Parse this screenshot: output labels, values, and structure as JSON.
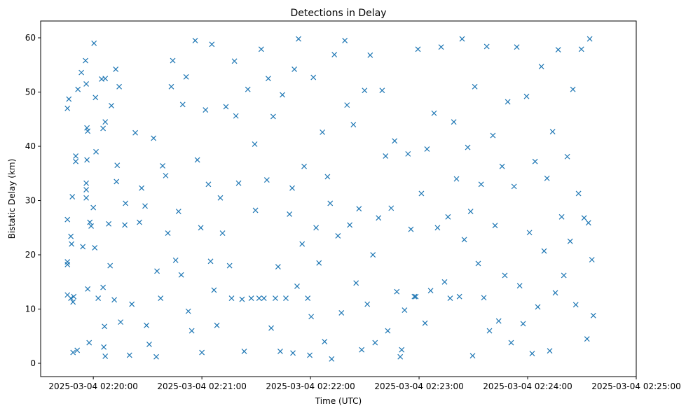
{
  "chart_data": {
    "type": "scatter",
    "title": "Detections in Delay",
    "xlabel": "Time (UTC)",
    "ylabel": "Bistatic Delay (km)",
    "x_unit": "seconds relative to 2025-03-04 02:20:00",
    "xlim": [
      -29.1,
      300
    ],
    "ylim": [
      -2.45,
      63.1
    ],
    "grid": false,
    "marker": "x",
    "color": "#1f77b4",
    "x_ticks": [
      {
        "value": 0,
        "label": "2025-03-04 02:20:00"
      },
      {
        "value": 60,
        "label": "2025-03-04 02:21:00"
      },
      {
        "value": 120,
        "label": "2025-03-04 02:22:00"
      },
      {
        "value": 180,
        "label": "2025-03-04 02:23:00"
      },
      {
        "value": 240,
        "label": "2025-03-04 02:24:00"
      },
      {
        "value": 300,
        "label": "2025-03-04 02:25:00"
      }
    ],
    "y_ticks": [
      {
        "value": 0,
        "label": "0"
      },
      {
        "value": 10,
        "label": "10"
      },
      {
        "value": 20,
        "label": "20"
      },
      {
        "value": 30,
        "label": "30"
      },
      {
        "value": 40,
        "label": "40"
      },
      {
        "value": 50,
        "label": "50"
      },
      {
        "value": 60,
        "label": "60"
      }
    ],
    "points": [
      [
        -14.3,
        47
      ],
      [
        -13.5,
        48.7
      ],
      [
        -14.3,
        26.5
      ],
      [
        -14.3,
        18.7
      ],
      [
        -14.3,
        18.2
      ],
      [
        -14.3,
        12.6
      ],
      [
        -12.4,
        12
      ],
      [
        -12,
        22
      ],
      [
        -12.4,
        23.4
      ],
      [
        -11.6,
        30.7
      ],
      [
        -11.2,
        11.3
      ],
      [
        -10.8,
        12.3
      ],
      [
        -11.2,
        2
      ],
      [
        -8.9,
        2.4
      ],
      [
        -9.7,
        38.2
      ],
      [
        -9.7,
        37.2
      ],
      [
        -8.5,
        50.5
      ],
      [
        -6.6,
        53.6
      ],
      [
        -4.3,
        55.8
      ],
      [
        -3.9,
        51.5
      ],
      [
        -3.5,
        43.4
      ],
      [
        -3.1,
        42.8
      ],
      [
        -3.9,
        33.2
      ],
      [
        -3.9,
        32
      ],
      [
        -3.9,
        30.5
      ],
      [
        -3.5,
        37.5
      ],
      [
        -1.9,
        26
      ],
      [
        -1.2,
        25.3
      ],
      [
        0,
        28.7
      ],
      [
        0.4,
        59
      ],
      [
        1.2,
        49
      ],
      [
        1.5,
        39
      ],
      [
        4.6,
        52.4
      ],
      [
        6.6,
        52.5
      ],
      [
        5.4,
        43.3
      ],
      [
        6.6,
        44.5
      ],
      [
        10,
        47.5
      ],
      [
        12.4,
        54.2
      ],
      [
        14.3,
        51
      ],
      [
        13.2,
        36.5
      ],
      [
        17.8,
        29.5
      ],
      [
        -5.8,
        21.5
      ],
      [
        -3.1,
        13.7
      ],
      [
        -2.3,
        3.8
      ],
      [
        0.8,
        21.3
      ],
      [
        2.7,
        12
      ],
      [
        5.4,
        14
      ],
      [
        5.8,
        3
      ],
      [
        6.2,
        6.8
      ],
      [
        6.6,
        1.3
      ],
      [
        8.5,
        25.7
      ],
      [
        9.3,
        18
      ],
      [
        11.6,
        11.7
      ],
      [
        12.8,
        33.5
      ],
      [
        15.1,
        7.6
      ],
      [
        17.4,
        25.5
      ],
      [
        20,
        1.5
      ],
      [
        21.3,
        10.9
      ],
      [
        23.2,
        42.5
      ],
      [
        25.5,
        26
      ],
      [
        26.7,
        32.3
      ],
      [
        28.6,
        29
      ],
      [
        29.4,
        7
      ],
      [
        30.9,
        3.5
      ],
      [
        33.3,
        41.5
      ],
      [
        34.8,
        1.2
      ],
      [
        35.2,
        17
      ],
      [
        37.2,
        12
      ],
      [
        38.3,
        36.4
      ],
      [
        40,
        34.6
      ],
      [
        41.2,
        24
      ],
      [
        43.1,
        51
      ],
      [
        43.9,
        55.8
      ],
      [
        45.5,
        19
      ],
      [
        47.1,
        28
      ],
      [
        48.6,
        16.3
      ],
      [
        49.4,
        47.7
      ],
      [
        51.3,
        52.8
      ],
      [
        52.5,
        9.6
      ],
      [
        54.4,
        6
      ],
      [
        56.3,
        59.5
      ],
      [
        57.5,
        37.5
      ],
      [
        59.4,
        25
      ],
      [
        60,
        2
      ],
      [
        62,
        46.7
      ],
      [
        63.6,
        33
      ],
      [
        64.8,
        18.8
      ],
      [
        65.5,
        58.8
      ],
      [
        66.7,
        13.5
      ],
      [
        68.3,
        7
      ],
      [
        70.2,
        30.5
      ],
      [
        71.4,
        24
      ],
      [
        73.3,
        47.3
      ],
      [
        75.3,
        18
      ],
      [
        76.4,
        12
      ],
      [
        78,
        55.7
      ],
      [
        78.8,
        45.6
      ],
      [
        80.3,
        33.2
      ],
      [
        82.2,
        11.8
      ],
      [
        83.4,
        2.2
      ],
      [
        85.4,
        50.5
      ],
      [
        87.3,
        12
      ],
      [
        89.2,
        40.4
      ],
      [
        89.6,
        28.2
      ],
      [
        91.6,
        12
      ],
      [
        92.8,
        57.9
      ],
      [
        94.3,
        12
      ],
      [
        95.9,
        33.8
      ],
      [
        96.7,
        52.5
      ],
      [
        98.3,
        6.5
      ],
      [
        99.4,
        45.5
      ],
      [
        100.6,
        12
      ],
      [
        102.1,
        17.8
      ],
      [
        103.3,
        2.2
      ],
      [
        104.5,
        49.5
      ],
      [
        106.4,
        12
      ],
      [
        108.4,
        27.5
      ],
      [
        109.9,
        32.3
      ],
      [
        110.3,
        1.9
      ],
      [
        111.1,
        54.2
      ],
      [
        112.6,
        14.2
      ],
      [
        113.4,
        59.8
      ],
      [
        115.4,
        22
      ],
      [
        116.5,
        36.3
      ],
      [
        118.5,
        12
      ],
      [
        119.6,
        1.5
      ],
      [
        120.4,
        8.6
      ],
      [
        121.6,
        52.7
      ],
      [
        123.1,
        25
      ],
      [
        124.7,
        18.5
      ],
      [
        126.6,
        42.6
      ],
      [
        127.8,
        4
      ],
      [
        129.4,
        34.4
      ],
      [
        130.9,
        29.5
      ],
      [
        131.7,
        0.8
      ],
      [
        133.2,
        56.9
      ],
      [
        135.2,
        23.5
      ],
      [
        137.1,
        9.3
      ],
      [
        139,
        59.5
      ],
      [
        140.2,
        47.6
      ],
      [
        141.7,
        25.5
      ],
      [
        143.7,
        44
      ],
      [
        145.2,
        14.8
      ],
      [
        146.8,
        28.5
      ],
      [
        148.3,
        2.5
      ],
      [
        149.9,
        50.3
      ],
      [
        151.4,
        10.9
      ],
      [
        153,
        56.8
      ],
      [
        154.5,
        20
      ],
      [
        155.7,
        3.8
      ],
      [
        157.6,
        26.8
      ],
      [
        159.6,
        50.3
      ],
      [
        161.5,
        38.2
      ],
      [
        162.7,
        6
      ],
      [
        164.6,
        28.6
      ],
      [
        166.5,
        41
      ],
      [
        167.7,
        13.2
      ],
      [
        169.6,
        1.2
      ],
      [
        170.4,
        2.5
      ],
      [
        172,
        9.8
      ],
      [
        173.9,
        38.6
      ],
      [
        175.5,
        24.7
      ],
      [
        177.4,
        12.3
      ],
      [
        178.2,
        12.3
      ],
      [
        179.4,
        57.9
      ],
      [
        181.3,
        31.3
      ],
      [
        183.3,
        7.4
      ],
      [
        184.4,
        39.5
      ],
      [
        186.4,
        13.4
      ],
      [
        188.3,
        46.1
      ],
      [
        190.2,
        25
      ],
      [
        192.2,
        58.3
      ],
      [
        194.1,
        15
      ],
      [
        196,
        27
      ],
      [
        197.2,
        12
      ],
      [
        199.2,
        44.5
      ],
      [
        200.7,
        34
      ],
      [
        202.3,
        12.3
      ],
      [
        203.8,
        59.8
      ],
      [
        205,
        22.8
      ],
      [
        206.9,
        39.8
      ],
      [
        208.5,
        28
      ],
      [
        209.6,
        1.4
      ],
      [
        210.8,
        51
      ],
      [
        212.7,
        18.4
      ],
      [
        214.3,
        33
      ],
      [
        215.8,
        12.1
      ],
      [
        217.4,
        58.4
      ],
      [
        218.9,
        6
      ],
      [
        220.8,
        42
      ],
      [
        222,
        25.4
      ],
      [
        224,
        7.8
      ],
      [
        225.9,
        36.3
      ],
      [
        227.4,
        16.2
      ],
      [
        229,
        48.2
      ],
      [
        230.9,
        3.8
      ],
      [
        232.5,
        32.6
      ],
      [
        234,
        58.3
      ],
      [
        235.6,
        14.3
      ],
      [
        237.5,
        7.3
      ],
      [
        239.4,
        49.2
      ],
      [
        241,
        24.1
      ],
      [
        242.5,
        1.8
      ],
      [
        244.1,
        37.2
      ],
      [
        245.6,
        10.4
      ],
      [
        247.6,
        54.7
      ],
      [
        249.1,
        20.7
      ],
      [
        250.7,
        34.1
      ],
      [
        252.2,
        2.3
      ],
      [
        253.8,
        42.7
      ],
      [
        255.3,
        13
      ],
      [
        256.9,
        57.8
      ],
      [
        258.8,
        27
      ],
      [
        260,
        16.2
      ],
      [
        261.9,
        38.1
      ],
      [
        263.5,
        22.5
      ],
      [
        265,
        50.5
      ],
      [
        266.6,
        10.8
      ],
      [
        268.1,
        31.3
      ],
      [
        269.7,
        57.9
      ],
      [
        271.2,
        26.8
      ],
      [
        272.8,
        4.5
      ],
      [
        274.3,
        59.8
      ],
      [
        275.5,
        19.1
      ],
      [
        276.3,
        8.8
      ],
      [
        273.6,
        25.9
      ]
    ]
  }
}
